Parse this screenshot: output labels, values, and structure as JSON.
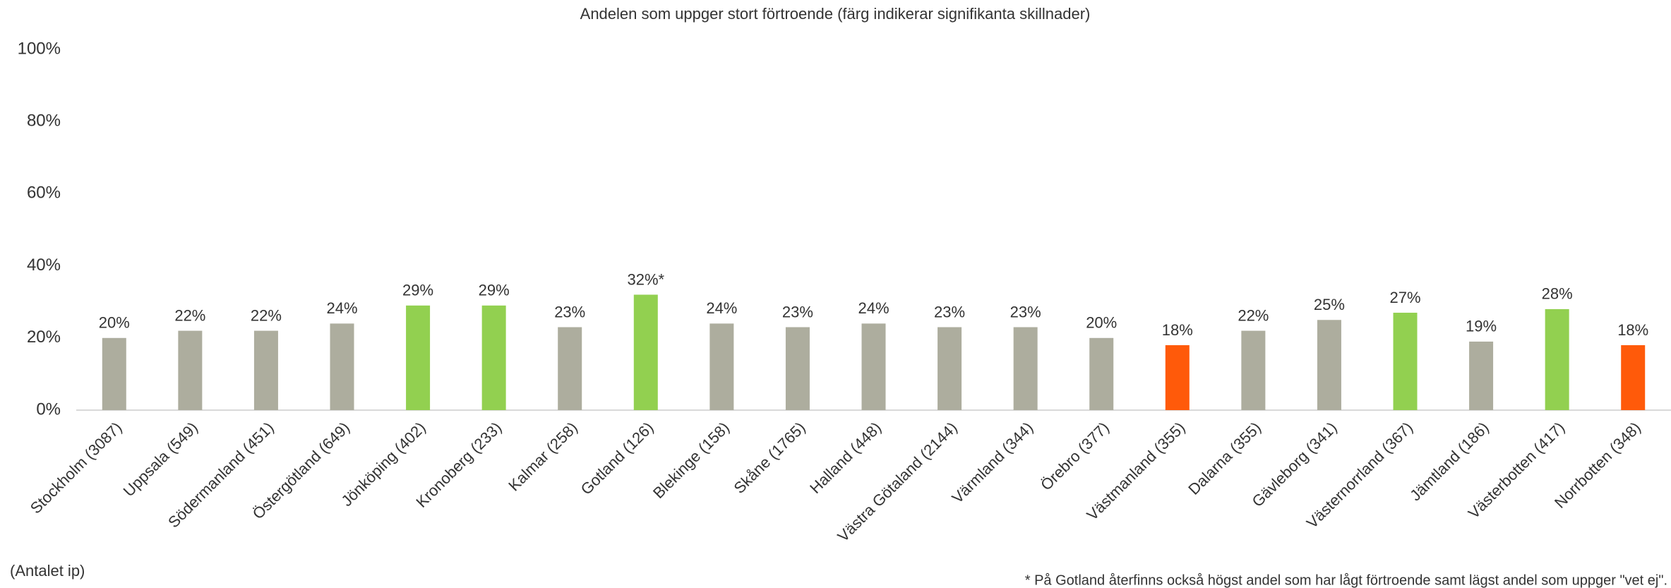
{
  "chart_data": {
    "type": "bar",
    "title": "Andelen som uppger stort förtroende (färg indikerar signifikanta skillnader)",
    "categories": [
      "Stockholm (3087)",
      "Uppsala (549)",
      "Södermanland (451)",
      "Östergötland (649)",
      "Jönköping (402)",
      "Kronoberg (233)",
      "Kalmar (258)",
      "Gotland (126)",
      "Blekinge (158)",
      "Skåne (1765)",
      "Halland (448)",
      "Västra Götaland (2144)",
      "Värmland (344)",
      "Örebro (377)",
      "Västmanland (355)",
      "Dalarna (355)",
      "Gävleborg (341)",
      "Västernorrland (367)",
      "Jämtland (186)",
      "Västerbotten (417)",
      "Norrbotten (348)"
    ],
    "values": [
      20,
      22,
      22,
      24,
      29,
      29,
      23,
      32,
      24,
      23,
      24,
      23,
      23,
      20,
      18,
      22,
      25,
      27,
      19,
      28,
      18
    ],
    "value_labels": [
      "20%",
      "22%",
      "22%",
      "24%",
      "29%",
      "29%",
      "23%",
      "32%*",
      "24%",
      "23%",
      "24%",
      "23%",
      "23%",
      "20%",
      "18%",
      "22%",
      "25%",
      "27%",
      "19%",
      "28%",
      "18%"
    ],
    "colors": [
      "#adad9e",
      "#adad9e",
      "#adad9e",
      "#adad9e",
      "#92d050",
      "#92d050",
      "#adad9e",
      "#92d050",
      "#adad9e",
      "#adad9e",
      "#adad9e",
      "#adad9e",
      "#adad9e",
      "#adad9e",
      "#ff5a0a",
      "#adad9e",
      "#adad9e",
      "#92d050",
      "#adad9e",
      "#92d050",
      "#ff5a0a"
    ],
    "ylim": [
      0,
      100
    ],
    "yticks": [
      {
        "value": 0,
        "label": "0%"
      },
      {
        "value": 20,
        "label": "20%"
      },
      {
        "value": 40,
        "label": "40%"
      },
      {
        "value": 60,
        "label": "60%"
      },
      {
        "value": 80,
        "label": "80%"
      },
      {
        "value": 100,
        "label": "100%"
      }
    ],
    "grid": false,
    "x_note": "(Antalet ip)",
    "footnote": "* På Gotland återfinns också högst andel som har lågt förtroende samt lägst andel som uppger \"vet ej\"."
  }
}
